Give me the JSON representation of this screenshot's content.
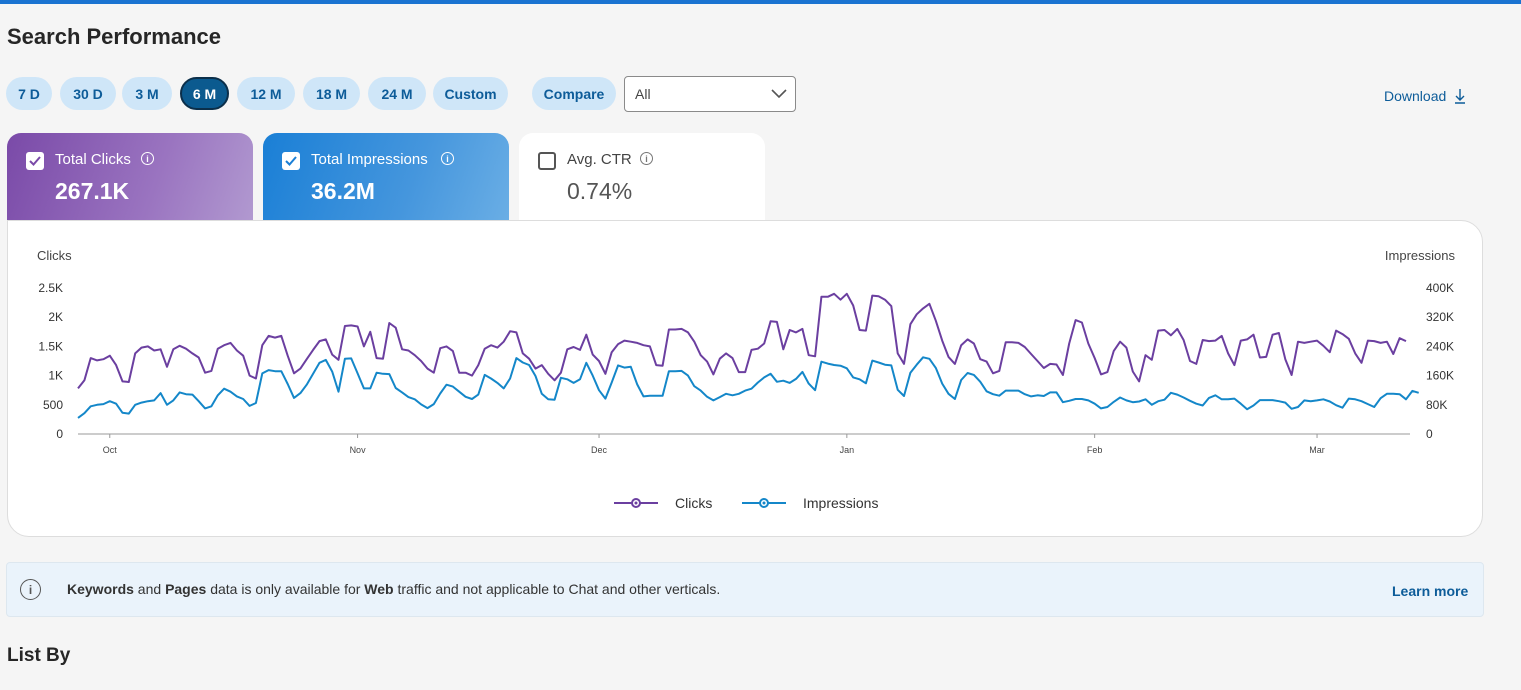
{
  "page": {
    "title": "Search Performance"
  },
  "ranges": [
    "7 D",
    "30 D",
    "3 M",
    "6 M",
    "12 M",
    "18 M",
    "24 M",
    "Custom"
  ],
  "active_range": "6 M",
  "compare_label": "Compare",
  "filter": {
    "selected": "All"
  },
  "download_label": "Download",
  "metrics": {
    "clicks": {
      "label": "Total Clicks",
      "value": "267.1K",
      "checked": true
    },
    "impressions": {
      "label": "Total Impressions",
      "value": "36.2M",
      "checked": true
    },
    "ctr": {
      "label": "Avg. CTR",
      "value": "0.74%",
      "checked": false
    }
  },
  "colors": {
    "clicks": "#6b3fa0",
    "impressions": "#1487c9",
    "accent": "#1a73d1"
  },
  "icons": {
    "checkbox": "check-icon",
    "info": "info-icon",
    "download": "download-icon",
    "chevron": "chevron-down-icon"
  },
  "chart_data": {
    "type": "line",
    "ylabel_left": "Clicks",
    "ylabel_right": "Impressions",
    "left_ticks": [
      "0",
      "500",
      "1K",
      "1.5K",
      "2K",
      "2.5K"
    ],
    "right_ticks": [
      "0",
      "80K",
      "160K",
      "240K",
      "320K",
      "400K"
    ],
    "ylim_left": [
      0,
      2500
    ],
    "ylim_right": [
      0,
      400000
    ],
    "x_ticks": [
      {
        "label": "Oct",
        "index": 5
      },
      {
        "label": "Nov",
        "index": 44
      },
      {
        "label": "Dec",
        "index": 82
      },
      {
        "label": "Jan",
        "index": 121
      },
      {
        "label": "Feb",
        "index": 160
      },
      {
        "label": "Mar",
        "index": 195
      }
    ],
    "legend": {
      "position": "bottom-center"
    },
    "series": [
      {
        "name": "Clicks",
        "values": [
          780,
          920,
          1300,
          1260,
          1280,
          1340,
          1180,
          900,
          890,
          1380,
          1480,
          1500,
          1430,
          1450,
          1150,
          1450,
          1510,
          1460,
          1380,
          1310,
          1050,
          1080,
          1460,
          1520,
          1560,
          1430,
          1340,
          1000,
          950,
          1520,
          1680,
          1650,
          1680,
          1340,
          1040,
          1120,
          1280,
          1440,
          1590,
          1620,
          1360,
          1270,
          1850,
          1860,
          1840,
          1500,
          1750,
          1300,
          1290,
          1900,
          1820,
          1450,
          1430,
          1350,
          1250,
          1120,
          1050,
          1470,
          1500,
          1420,
          1050,
          1050,
          1000,
          1180,
          1460,
          1520,
          1480,
          1580,
          1760,
          1740,
          1380,
          1290,
          1120,
          1180,
          1030,
          920,
          1050,
          1450,
          1490,
          1440,
          1700,
          1360,
          1250,
          1030,
          1400,
          1540,
          1600,
          1580,
          1560,
          1520,
          1500,
          1180,
          1170,
          1790,
          1790,
          1800,
          1740,
          1580,
          1350,
          1240,
          1020,
          1290,
          1380,
          1300,
          1060,
          1060,
          1440,
          1460,
          1550,
          1930,
          1920,
          1450,
          1780,
          1740,
          1800,
          1350,
          1330,
          2350,
          2350,
          2400,
          2300,
          2400,
          2200,
          1780,
          1770,
          2370,
          2360,
          2300,
          2190,
          1380,
          1200,
          1880,
          2050,
          2150,
          2230,
          1940,
          1600,
          1320,
          1200,
          1520,
          1620,
          1550,
          1280,
          1240,
          1040,
          1080,
          1570,
          1570,
          1560,
          1490,
          1370,
          1250,
          1130,
          1200,
          1190,
          1010,
          1550,
          1950,
          1910,
          1550,
          1300,
          1020,
          1060,
          1420,
          1580,
          1480,
          1070,
          900,
          1350,
          1270,
          1770,
          1780,
          1690,
          1800,
          1610,
          1250,
          1200,
          1610,
          1590,
          1600,
          1680,
          1380,
          1180,
          1600,
          1620,
          1700,
          1310,
          1320,
          1700,
          1730,
          1280,
          1010,
          1580,
          1560,
          1580,
          1600,
          1510,
          1400,
          1770,
          1710,
          1630,
          1380,
          1220,
          1600,
          1590,
          1560,
          1580,
          1370,
          1640,
          1590
        ],
        "color": "#6b3fa0"
      },
      {
        "name": "Impressions",
        "values": [
          44000,
          57000,
          76000,
          80000,
          82000,
          90000,
          83000,
          58000,
          56000,
          80000,
          86000,
          90000,
          92000,
          112000,
          80000,
          92000,
          114000,
          109000,
          108000,
          90000,
          70000,
          76000,
          106000,
          124000,
          116000,
          103000,
          96000,
          77000,
          85000,
          166000,
          175000,
          172000,
          172000,
          137000,
          99000,
          112000,
          135000,
          165000,
          195000,
          203000,
          171000,
          116000,
          206000,
          207000,
          166000,
          125000,
          125000,
          168000,
          165000,
          164000,
          126000,
          114000,
          101000,
          95000,
          81000,
          71000,
          82000,
          111000,
          135000,
          130000,
          116000,
          102000,
          96000,
          108000,
          162000,
          152000,
          140000,
          125000,
          152000,
          208000,
          196000,
          189000,
          159000,
          110000,
          95000,
          94000,
          154000,
          150000,
          140000,
          150000,
          195000,
          160000,
          120000,
          97000,
          141000,
          188000,
          182000,
          184000,
          136000,
          103000,
          105000,
          105000,
          105000,
          172000,
          172000,
          173000,
          160000,
          131000,
          119000,
          102000,
          92000,
          101000,
          110000,
          106000,
          110000,
          119000,
          124000,
          141000,
          155000,
          165000,
          143000,
          146000,
          140000,
          151000,
          170000,
          138000,
          120000,
          198000,
          193000,
          189000,
          187000,
          180000,
          155000,
          150000,
          139000,
          201000,
          196000,
          190000,
          188000,
          121000,
          104000,
          168000,
          190000,
          210000,
          206000,
          181000,
          138000,
          110000,
          96000,
          148000,
          167000,
          162000,
          143000,
          117000,
          109000,
          105000,
          119000,
          119000,
          119000,
          109000,
          103000,
          106000,
          104000,
          114000,
          114000,
          87000,
          91000,
          96000,
          96000,
          92000,
          83000,
          70000,
          74000,
          88000,
          100000,
          92000,
          87000,
          89000,
          95000,
          80000,
          90000,
          94000,
          113000,
          108000,
          100000,
          91000,
          83000,
          78000,
          99000,
          106000,
          95000,
          95000,
          97000,
          83000,
          68000,
          78000,
          93000,
          93000,
          93000,
          90000,
          86000,
          69000,
          74000,
          92000,
          90000,
          92000,
          95000,
          89000,
          79000,
          72000,
          97000,
          95000,
          90000,
          82000,
          74000,
          98000,
          110000,
          110000,
          109000,
          95000,
          118000,
          113000
        ],
        "color": "#1487c9"
      }
    ]
  },
  "banner": {
    "keywords": "Keywords",
    "and": " and ",
    "pages": "Pages",
    "middle": " data is only available for ",
    "web": "Web",
    "tail": " traffic and not applicable to Chat and other verticals.",
    "link": "Learn more"
  },
  "list_by": "List By"
}
